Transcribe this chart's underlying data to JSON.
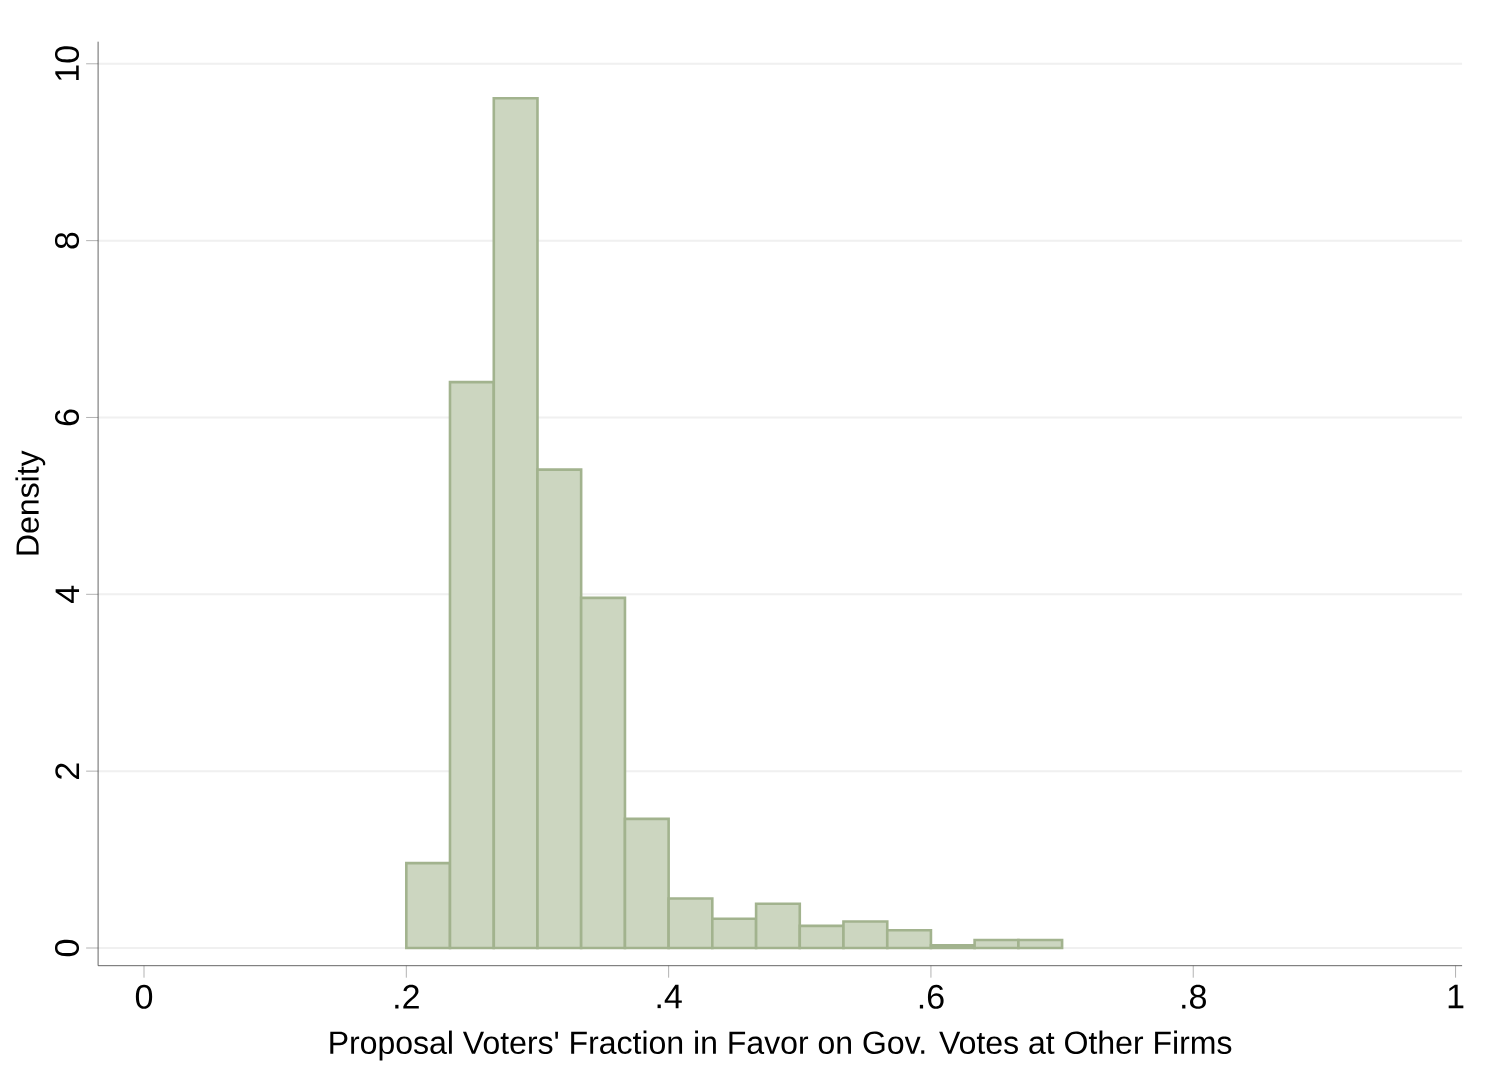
{
  "chart_data": {
    "type": "histogram",
    "xlabel": "Proposal Voters' Fraction in Favor on Gov. Votes at Other Firms",
    "ylabel": "Density",
    "bins": [
      0.2,
      0.2333,
      0.2667,
      0.3,
      0.3333,
      0.3667,
      0.4,
      0.4333,
      0.4667,
      0.5,
      0.5333,
      0.5667,
      0.6,
      0.6333,
      0.6667,
      0.7
    ],
    "values": [
      0.96,
      6.4,
      9.61,
      5.41,
      3.96,
      1.46,
      0.56,
      0.33,
      0.5,
      0.25,
      0.3,
      0.2,
      0.03,
      0.09,
      0.09
    ],
    "color": "#ccd6c0",
    "xlim": [
      -0.035,
      1.005
    ],
    "ylim": [
      -0.2,
      10.25
    ],
    "xticks": [
      0,
      {
        "value": 0.2,
        "label": ".2"
      },
      {
        "value": 0.4,
        "label": ".4"
      },
      {
        "value": 0.6,
        "label": ".6"
      },
      {
        "value": 0.8,
        "label": ".8"
      },
      1
    ],
    "yticks": [
      0,
      2,
      4,
      6,
      8,
      10
    ],
    "grid": "y"
  }
}
